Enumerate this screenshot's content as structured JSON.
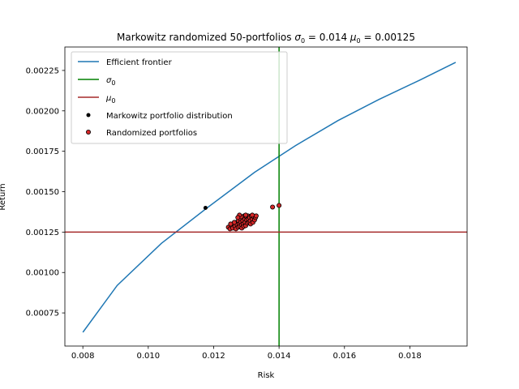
{
  "chart_data": {
    "type": "line",
    "title": "Markowitz randomized 50-portfolios σ₀ = 0.014 μ₀ = 0.00125",
    "title_parts": {
      "prefix": "Markowitz randomized 50-portfolios ",
      "sigma_label": "σ",
      "sigma_value": " = 0.014 ",
      "mu_label": "μ",
      "mu_value": " = 0.00125",
      "subscript": "0"
    },
    "xlabel": "Risk",
    "ylabel": "Return",
    "xlim": [
      0.00745,
      0.01975
    ],
    "ylim": [
      0.000545,
      0.002395
    ],
    "xticks": [
      0.008,
      0.01,
      0.012,
      0.014,
      0.016,
      0.018
    ],
    "xtick_labels": [
      "0.008",
      "0.010",
      "0.012",
      "0.014",
      "0.016",
      "0.018"
    ],
    "yticks": [
      0.00075,
      0.001,
      0.00125,
      0.0015,
      0.00175,
      0.002,
      0.00225
    ],
    "ytick_labels": [
      "0.00075",
      "0.00100",
      "0.00125",
      "0.00150",
      "0.00175",
      "0.00200",
      "0.00225"
    ],
    "grid": false,
    "legend_position": "top-left",
    "frontier": {
      "name": "Efficient frontier",
      "color": "#1f77b4",
      "x": [
        0.008,
        0.00905,
        0.0104,
        0.0118,
        0.01325,
        0.0145,
        0.0158,
        0.01705,
        0.0183,
        0.0194
      ],
      "y": [
        0.00063,
        0.00092,
        0.00118,
        0.0014,
        0.00162,
        0.001785,
        0.00194,
        0.00207,
        0.00219,
        0.0023
      ]
    },
    "sigma_line": {
      "name": "σ",
      "subscript": "0",
      "value": 0.014,
      "color": "#008000"
    },
    "mu_line": {
      "name": "μ",
      "subscript": "0",
      "value": 0.00125,
      "color": "#a52a2a"
    },
    "markowitz_point": {
      "name": "Markowitz portfolio distribution",
      "x": 0.01175,
      "y": 0.0014,
      "color": "#000000"
    },
    "randomized": {
      "name": "Randomized portfolios",
      "face_color": "#d62728",
      "edge_color": "#000000",
      "points": [
        [
          0.01245,
          0.00128
        ],
        [
          0.0125,
          0.00127
        ],
        [
          0.01255,
          0.00129
        ],
        [
          0.01258,
          0.001275
        ],
        [
          0.01262,
          0.0013
        ],
        [
          0.01265,
          0.001285
        ],
        [
          0.01268,
          0.00127
        ],
        [
          0.0127,
          0.00131
        ],
        [
          0.01272,
          0.001295
        ],
        [
          0.01275,
          0.00128
        ],
        [
          0.01276,
          0.00132
        ],
        [
          0.01278,
          0.0013
        ],
        [
          0.0128,
          0.001285
        ],
        [
          0.01282,
          0.00133
        ],
        [
          0.01283,
          0.00131
        ],
        [
          0.01285,
          0.001295
        ],
        [
          0.01286,
          0.001275
        ],
        [
          0.01288,
          0.00134
        ],
        [
          0.01289,
          0.00132
        ],
        [
          0.0129,
          0.0013
        ],
        [
          0.01292,
          0.001285
        ],
        [
          0.01293,
          0.00135
        ],
        [
          0.01295,
          0.00133
        ],
        [
          0.01296,
          0.00131
        ],
        [
          0.01298,
          0.00129
        ],
        [
          0.013,
          0.001345
        ],
        [
          0.01301,
          0.001325
        ],
        [
          0.01303,
          0.001305
        ],
        [
          0.01305,
          0.00135
        ],
        [
          0.01306,
          0.00133
        ],
        [
          0.01308,
          0.00131
        ],
        [
          0.0131,
          0.00134
        ],
        [
          0.01312,
          0.00132
        ],
        [
          0.01313,
          0.0013
        ],
        [
          0.01315,
          0.00135
        ],
        [
          0.01318,
          0.00133
        ],
        [
          0.0132,
          0.00131
        ],
        [
          0.01322,
          0.001345
        ],
        [
          0.01325,
          0.001325
        ],
        [
          0.01328,
          0.00134
        ],
        [
          0.0133,
          0.00135
        ],
        [
          0.01284,
          0.001345
        ],
        [
          0.01279,
          0.001355
        ],
        [
          0.01298,
          0.001355
        ],
        [
          0.01318,
          0.001355
        ],
        [
          0.01274,
          0.00134
        ],
        [
          0.01263,
          0.00131
        ],
        [
          0.01252,
          0.0013
        ],
        [
          0.0138,
          0.001405
        ],
        [
          0.014,
          0.001415
        ]
      ]
    }
  }
}
